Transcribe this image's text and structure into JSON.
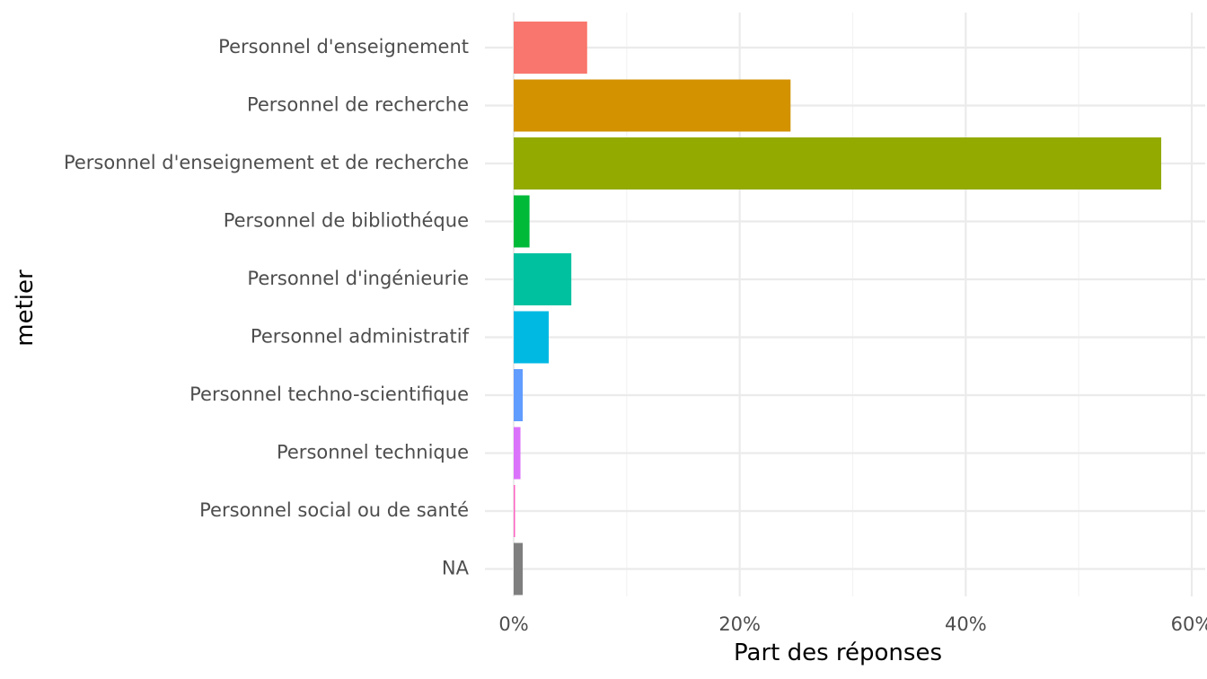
{
  "chart_data": {
    "type": "bar",
    "orientation": "horizontal",
    "title": "",
    "xlabel": "Part des réponses",
    "ylabel": "metier",
    "xlim": [
      0,
      0.6
    ],
    "x_ticks": [
      {
        "value": 0,
        "label": "0%"
      },
      {
        "value": 0.2,
        "label": "20%"
      },
      {
        "value": 0.4,
        "label": "40%"
      },
      {
        "value": 0.6,
        "label": "60%"
      }
    ],
    "grid": true,
    "legend": "none",
    "categories": [
      "Personnel d'enseignement",
      "Personnel de recherche",
      "Personnel d'enseignement et de recherche",
      "Personnel de bibliothéque",
      "Personnel d'ingénieurie",
      "Personnel administratif",
      "Personnel techno-scientifique",
      "Personnel technique",
      "Personnel social ou de santé",
      "NA"
    ],
    "values": [
      0.065,
      0.245,
      0.573,
      0.014,
      0.051,
      0.031,
      0.008,
      0.006,
      0.001,
      0.008
    ],
    "colors": [
      "#F8766D",
      "#D39200",
      "#93AA00",
      "#00BA38",
      "#00C19F",
      "#00B9E3",
      "#619CFF",
      "#DB72FB",
      "#FF61C3",
      "#7F7F7F"
    ]
  }
}
